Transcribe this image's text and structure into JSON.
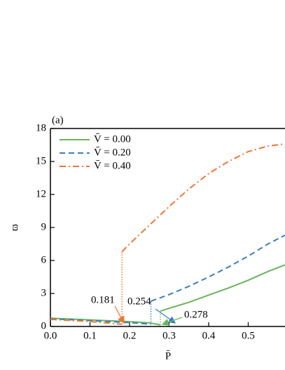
{
  "chart_data": {
    "type": "line",
    "panel_label": "(a)",
    "x_label": "P̄",
    "y_label": "ϖ",
    "xlim": [
      0,
      0.593
    ],
    "ylim": [
      0,
      18
    ],
    "xticks": [
      {
        "value": 0,
        "label": "0.0"
      },
      0.1,
      0.2,
      0.3,
      0.4,
      0.5
    ],
    "yticks": [
      0,
      3,
      6,
      9,
      12,
      15,
      18
    ],
    "legend": "top-left",
    "series": [
      {
        "name": "V̄ = 0.00",
        "color": "#6ab55a",
        "dash": "solid",
        "x": [
          0,
          0.05,
          0.1,
          0.15,
          0.2,
          0.25,
          0.278,
          0.278,
          0.3,
          0.35,
          0.4,
          0.45,
          0.5,
          0.55,
          0.593
        ],
        "values": [
          0.75,
          0.68,
          0.6,
          0.52,
          0.44,
          0.33,
          0.15,
          1.4,
          1.65,
          2.2,
          2.85,
          3.5,
          4.2,
          5.0,
          5.6
        ]
      },
      {
        "name": "V̄ = 0.20",
        "color": "#3b7dc0",
        "dash": "dashed",
        "x": [
          0,
          0.05,
          0.1,
          0.15,
          0.2,
          0.254,
          0.254,
          0.3,
          0.35,
          0.4,
          0.45,
          0.5,
          0.55,
          0.593
        ],
        "values": [
          0.7,
          0.62,
          0.53,
          0.44,
          0.35,
          0.2,
          2.3,
          2.9,
          3.65,
          4.5,
          5.4,
          6.4,
          7.5,
          8.3
        ]
      },
      {
        "name": "V̄ = 0.40",
        "color": "#ee7633",
        "dash": "dashdot",
        "x": [
          0,
          0.05,
          0.1,
          0.15,
          0.181,
          0.181,
          0.2,
          0.25,
          0.3,
          0.35,
          0.4,
          0.45,
          0.5,
          0.55,
          0.593
        ],
        "values": [
          0.65,
          0.55,
          0.45,
          0.3,
          0.2,
          6.8,
          7.5,
          9.2,
          10.9,
          12.5,
          13.9,
          15.0,
          15.9,
          16.4,
          16.6
        ]
      }
    ],
    "annotations": [
      {
        "text": "0.181",
        "color": "#ee7633"
      },
      {
        "text": "0.254",
        "color": "#3b7dc0"
      },
      {
        "text": "0.278",
        "color": "#6ab55a"
      }
    ]
  }
}
